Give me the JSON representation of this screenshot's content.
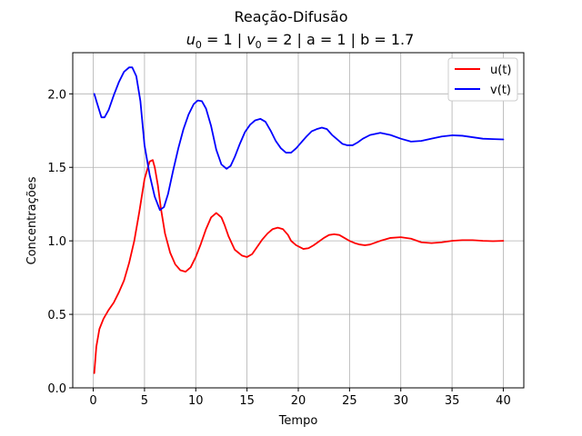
{
  "chart_data": {
    "type": "line",
    "title": "Reação-Difusão",
    "subtitle": {
      "u_var": "u",
      "u_sub": "0",
      "u_val": " = 1 | ",
      "v_var": "v",
      "v_sub": "0",
      "v_rest": " = 2 | a = 1 | b = 1.7"
    },
    "xlabel": "Tempo",
    "ylabel": "Concentrações",
    "xlim": [
      -2,
      42
    ],
    "ylim": [
      0,
      2.28
    ],
    "xticks": [
      0,
      5,
      10,
      15,
      20,
      25,
      30,
      35,
      40
    ],
    "yticks": [
      0.0,
      0.5,
      1.0,
      1.5,
      2.0
    ],
    "ytick_labels": [
      "0.0",
      "0.5",
      "1.0",
      "1.5",
      "2.0"
    ],
    "grid": true,
    "legend_position": "top-right",
    "series": [
      {
        "name": "u(t)",
        "color": "#ff0000",
        "x": [
          0.1,
          0.3,
          0.6,
          1.0,
          1.5,
          2.0,
          2.5,
          3.0,
          3.5,
          4.0,
          4.5,
          5.0,
          5.5,
          5.8,
          6.0,
          6.3,
          6.6,
          7.0,
          7.5,
          8.0,
          8.5,
          9.0,
          9.5,
          10.0,
          10.5,
          11.0,
          11.5,
          12.0,
          12.5,
          12.8,
          13.2,
          13.8,
          14.5,
          15.0,
          15.5,
          16.0,
          16.5,
          17.0,
          17.5,
          18.0,
          18.5,
          19.0,
          19.3,
          19.8,
          20.5,
          21.0,
          21.5,
          22.0,
          22.5,
          23.0,
          23.5,
          24.0,
          24.5,
          25.0,
          25.5,
          26.0,
          26.5,
          27.0,
          28.0,
          29.0,
          30.0,
          31.0,
          32.0,
          33.0,
          34.0,
          35.0,
          36.0,
          37.0,
          38.0,
          39.0,
          40.0
        ],
        "values": [
          0.1,
          0.28,
          0.4,
          0.47,
          0.53,
          0.58,
          0.65,
          0.73,
          0.85,
          1.0,
          1.2,
          1.42,
          1.54,
          1.55,
          1.5,
          1.38,
          1.22,
          1.05,
          0.92,
          0.84,
          0.8,
          0.79,
          0.82,
          0.89,
          0.98,
          1.08,
          1.16,
          1.19,
          1.16,
          1.11,
          1.03,
          0.94,
          0.9,
          0.89,
          0.91,
          0.96,
          1.01,
          1.05,
          1.08,
          1.09,
          1.08,
          1.04,
          1.0,
          0.97,
          0.945,
          0.95,
          0.97,
          0.995,
          1.02,
          1.04,
          1.045,
          1.04,
          1.02,
          1.0,
          0.985,
          0.975,
          0.97,
          0.975,
          1.0,
          1.02,
          1.025,
          1.015,
          0.99,
          0.985,
          0.99,
          1.0,
          1.005,
          1.005,
          1.0,
          0.998,
          1.0
        ]
      },
      {
        "name": "v(t)",
        "color": "#0000ff",
        "x": [
          0.1,
          0.4,
          0.8,
          1.1,
          1.5,
          2.0,
          2.5,
          3.0,
          3.5,
          3.8,
          4.2,
          4.6,
          5.0,
          5.5,
          6.0,
          6.5,
          6.9,
          7.3,
          7.8,
          8.3,
          8.8,
          9.3,
          9.8,
          10.2,
          10.6,
          11.0,
          11.5,
          12.0,
          12.5,
          13.0,
          13.4,
          13.8,
          14.3,
          14.8,
          15.3,
          15.8,
          16.3,
          16.8,
          17.3,
          17.8,
          18.3,
          18.8,
          19.3,
          19.8,
          20.3,
          20.8,
          21.3,
          21.8,
          22.3,
          22.8,
          23.3,
          23.8,
          24.3,
          24.8,
          25.3,
          25.8,
          26.3,
          27.0,
          28.0,
          29.0,
          30.0,
          31.0,
          32.0,
          33.0,
          34.0,
          35.0,
          36.0,
          37.0,
          38.0,
          39.0,
          40.0
        ],
        "values": [
          2.0,
          1.93,
          1.84,
          1.84,
          1.89,
          1.99,
          2.08,
          2.15,
          2.18,
          2.18,
          2.12,
          1.95,
          1.65,
          1.45,
          1.3,
          1.21,
          1.23,
          1.32,
          1.48,
          1.63,
          1.76,
          1.86,
          1.93,
          1.955,
          1.95,
          1.9,
          1.78,
          1.62,
          1.52,
          1.49,
          1.51,
          1.57,
          1.66,
          1.74,
          1.79,
          1.82,
          1.83,
          1.81,
          1.75,
          1.68,
          1.63,
          1.6,
          1.6,
          1.63,
          1.67,
          1.71,
          1.745,
          1.76,
          1.77,
          1.76,
          1.72,
          1.69,
          1.66,
          1.65,
          1.65,
          1.67,
          1.695,
          1.72,
          1.735,
          1.72,
          1.695,
          1.675,
          1.68,
          1.695,
          1.71,
          1.718,
          1.715,
          1.705,
          1.695,
          1.692,
          1.69
        ]
      }
    ]
  }
}
